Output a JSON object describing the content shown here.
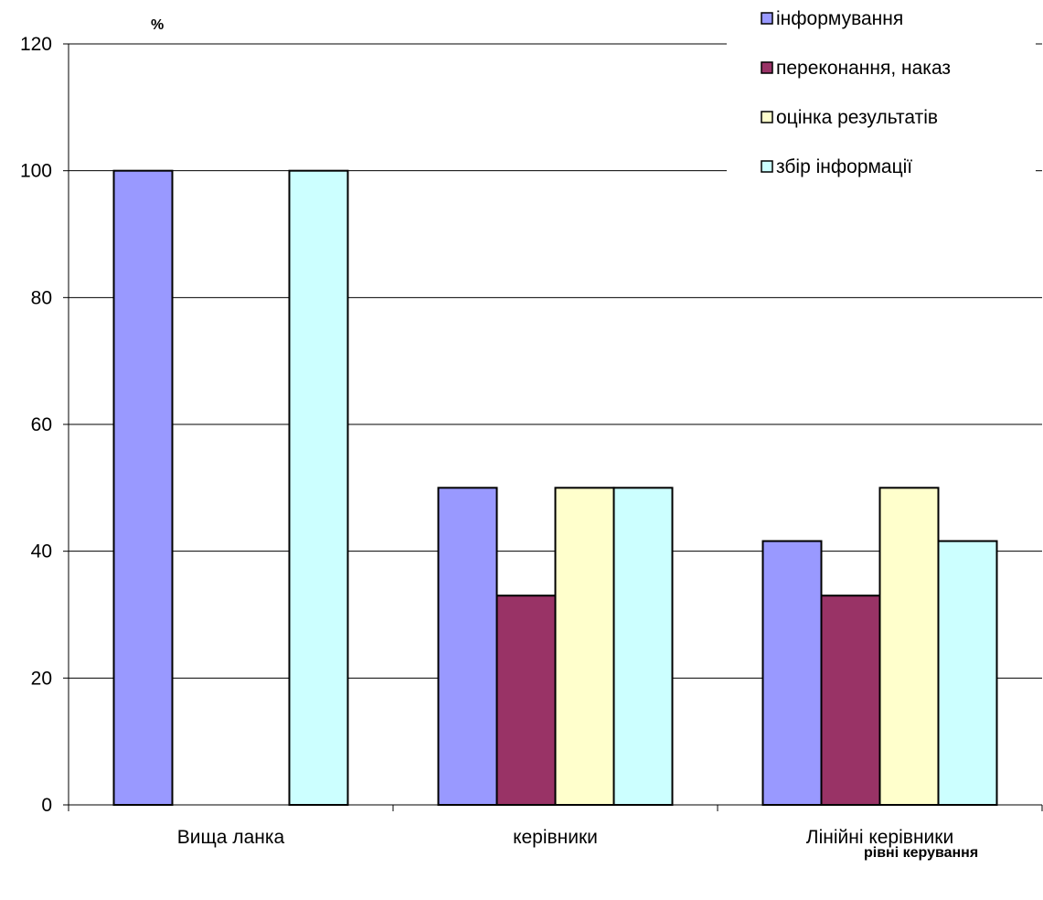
{
  "chart_data": {
    "type": "bar",
    "title": "",
    "ylabel": "%",
    "xlabel": "рівні керування",
    "ylim": [
      0,
      120
    ],
    "yticks": [
      0,
      20,
      40,
      60,
      80,
      100,
      120
    ],
    "categories": [
      "Вища ланка",
      "керівники",
      "Лінійні керівники"
    ],
    "series": [
      {
        "name": "інформування",
        "color": "#9999ff",
        "values": [
          100,
          50,
          41.6
        ]
      },
      {
        "name": "переконання, наказ",
        "color": "#993366",
        "values": [
          0,
          33,
          33
        ]
      },
      {
        "name": "оцінка результатів",
        "color": "#ffffcc",
        "values": [
          0,
          50,
          50
        ]
      },
      {
        "name": "збір інформації",
        "color": "#ccffff",
        "values": [
          100,
          50,
          41.6
        ]
      }
    ],
    "grid": true,
    "legend_position": "top-right"
  }
}
